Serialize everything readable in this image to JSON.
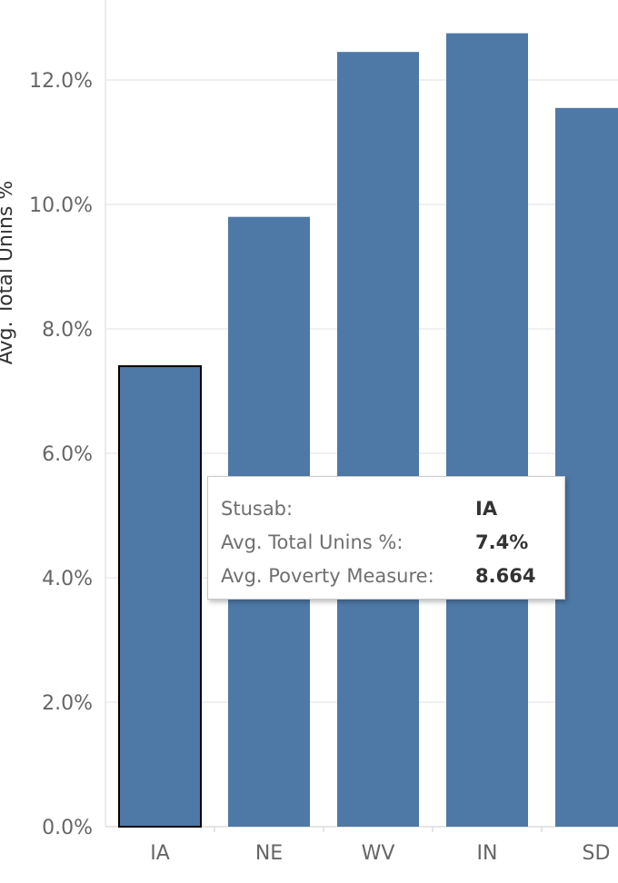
{
  "chart_data": {
    "type": "bar",
    "ylabel": "Avg. Total Unins %",
    "categories": [
      "IA",
      "NE",
      "WV",
      "IN",
      "SD"
    ],
    "values": [
      7.4,
      9.8,
      12.45,
      12.75,
      11.55
    ],
    "ylim": [
      0,
      13
    ],
    "yticks": [
      "0.0%",
      "2.0%",
      "4.0%",
      "6.0%",
      "8.0%",
      "10.0%",
      "12.0%"
    ],
    "ytick_values": [
      0,
      2,
      4,
      6,
      8,
      10,
      12
    ],
    "grid": true,
    "bar_color": "#4e79a7",
    "highlighted": "IA"
  },
  "tooltip": {
    "rows": [
      {
        "key": "Stusab:",
        "value": "IA"
      },
      {
        "key": "Avg. Total Unins %:",
        "value": "7.4%"
      },
      {
        "key": "Avg. Poverty Measure:",
        "value": "8.664"
      }
    ]
  }
}
